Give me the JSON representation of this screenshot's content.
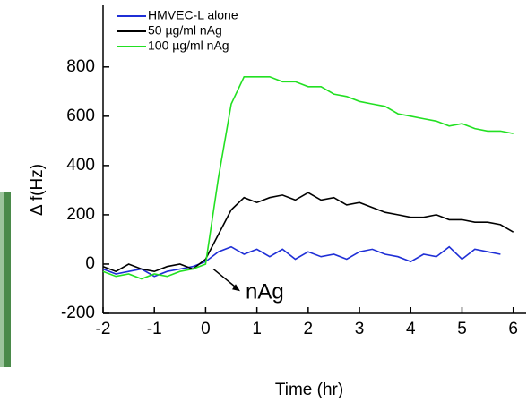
{
  "chart_data": {
    "type": "line",
    "xlabel": "Time (hr)",
    "ylabel": "Δ f(Hz)",
    "annotation": "nAg",
    "x": [
      -2,
      -1.75,
      -1.5,
      -1.25,
      -1,
      -0.75,
      -0.5,
      -0.25,
      0,
      0.25,
      0.5,
      0.75,
      1,
      1.25,
      1.5,
      1.75,
      2,
      2.25,
      2.5,
      2.75,
      3,
      3.25,
      3.5,
      3.75,
      4,
      4.25,
      4.5,
      4.75,
      5,
      5.25,
      5.5,
      5.75,
      6
    ],
    "series": [
      {
        "name": "HMVEC-L alone",
        "color": "#1f2fd6",
        "values": [
          -20,
          -40,
          -30,
          -20,
          -50,
          -30,
          -20,
          -10,
          10,
          50,
          70,
          40,
          60,
          30,
          60,
          20,
          50,
          30,
          40,
          20,
          50,
          60,
          40,
          30,
          10,
          40,
          30,
          70,
          20,
          60,
          50,
          40,
          null
        ]
      },
      {
        "name": "50 µg/ml nAg",
        "color": "#000000",
        "values": [
          -10,
          -30,
          0,
          -20,
          -30,
          -10,
          0,
          -20,
          20,
          120,
          220,
          270,
          250,
          270,
          280,
          260,
          290,
          260,
          270,
          240,
          250,
          230,
          210,
          200,
          190,
          190,
          200,
          180,
          180,
          170,
          170,
          160,
          130
        ]
      },
      {
        "name": "100 µg/ml nAg",
        "color": "#22e022",
        "values": [
          -30,
          -50,
          -40,
          -60,
          -40,
          -50,
          -30,
          -20,
          0,
          350,
          650,
          760,
          760,
          760,
          740,
          740,
          720,
          720,
          690,
          680,
          660,
          650,
          640,
          610,
          600,
          590,
          580,
          560,
          570,
          550,
          540,
          540,
          530
        ]
      }
    ],
    "xlim": [
      -2,
      6.25
    ],
    "xticks": [
      -2,
      -1,
      0,
      1,
      2,
      3,
      4,
      5,
      6
    ],
    "ylim": [
      -200,
      1050
    ],
    "yticks": [
      -200,
      0,
      200,
      400,
      600,
      800
    ],
    "legend": "upper left"
  }
}
